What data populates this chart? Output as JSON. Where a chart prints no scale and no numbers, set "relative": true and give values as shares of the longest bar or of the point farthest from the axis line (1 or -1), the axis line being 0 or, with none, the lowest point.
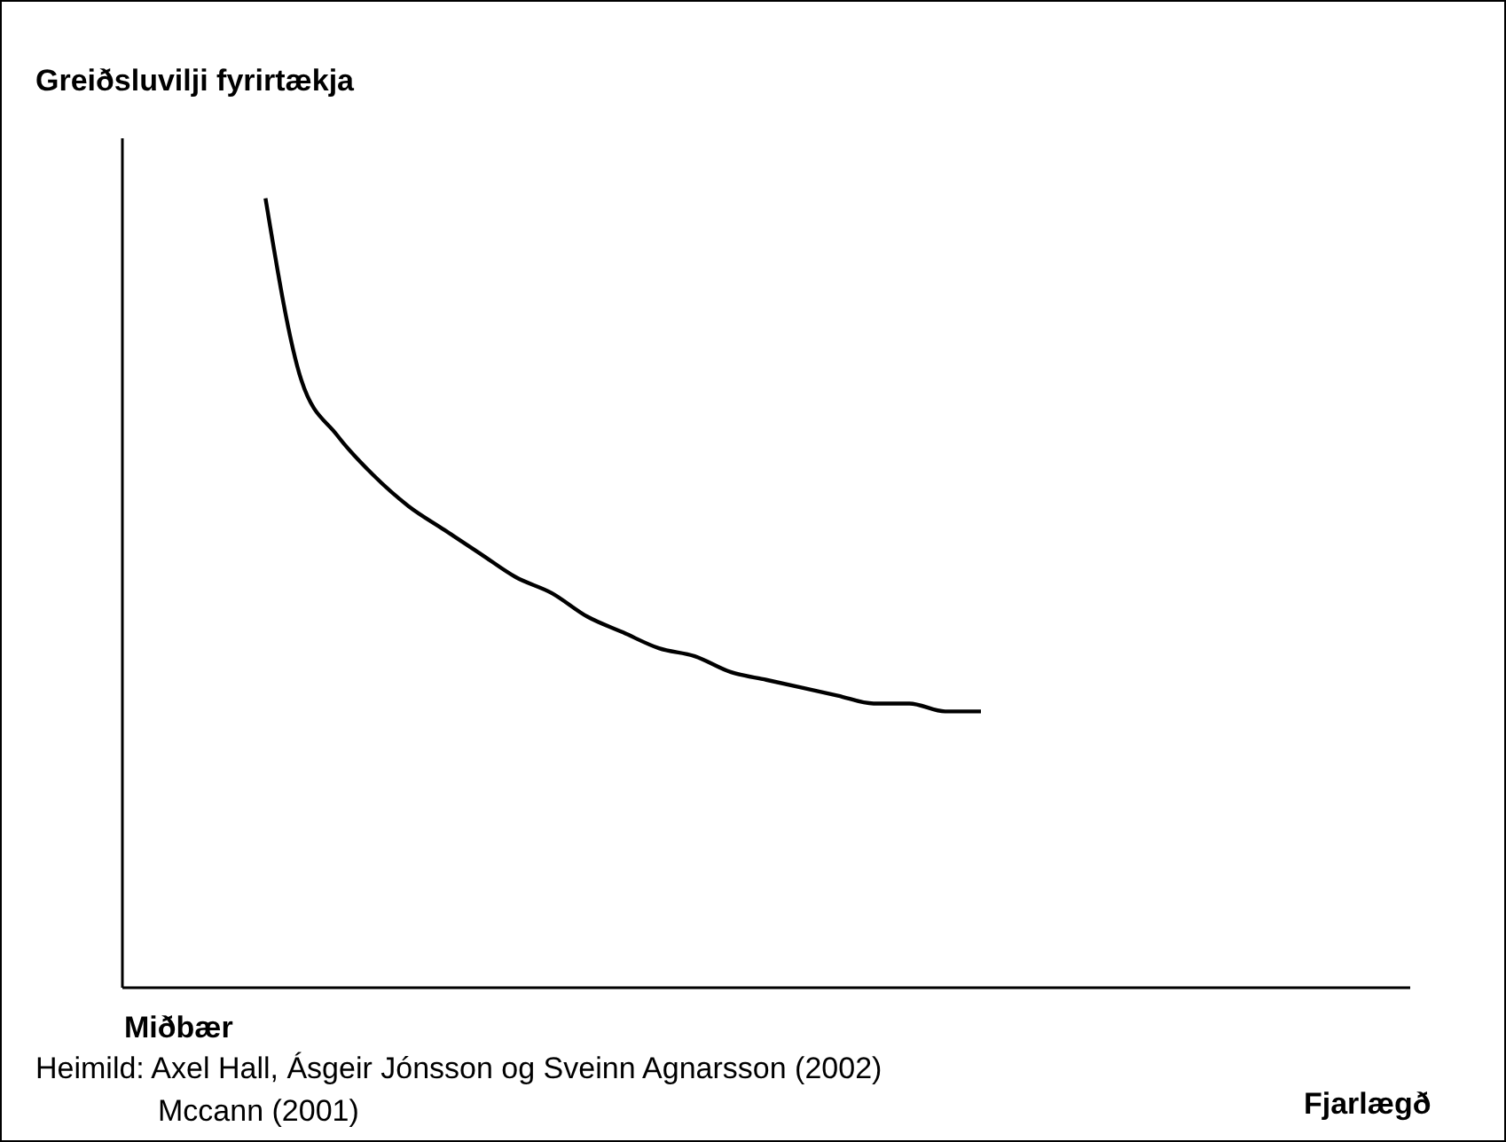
{
  "chart_data": {
    "type": "line",
    "relative": true,
    "ylabel": "Greiðsluvilji fyrirtækja",
    "categories": [
      null,
      null,
      null,
      null,
      null,
      null,
      null,
      null,
      null,
      null,
      null,
      null,
      null,
      null,
      null,
      null,
      null,
      null,
      null,
      null,
      null
    ],
    "series": [
      {
        "color": "#000000",
        "values": [
          1,
          0.77,
          0.7,
          0.65,
          0.61,
          0.58,
          0.55,
          0.52,
          0.5,
          0.47,
          0.45,
          0.43,
          0.42,
          0.4,
          0.39,
          0.38,
          0.37,
          0.36,
          0.36,
          0.35,
          0.35
        ]
      }
    ],
    "marker": "none",
    "line_style": "solid",
    "grid": false,
    "legend": false,
    "annotations": [
      "Miðbær",
      "Fjarlægð",
      "Heimild: Axel Hall, Ásgeir Jónsson og Sveinn Agnarsson (2002)",
      "Mccann (2001)"
    ]
  }
}
